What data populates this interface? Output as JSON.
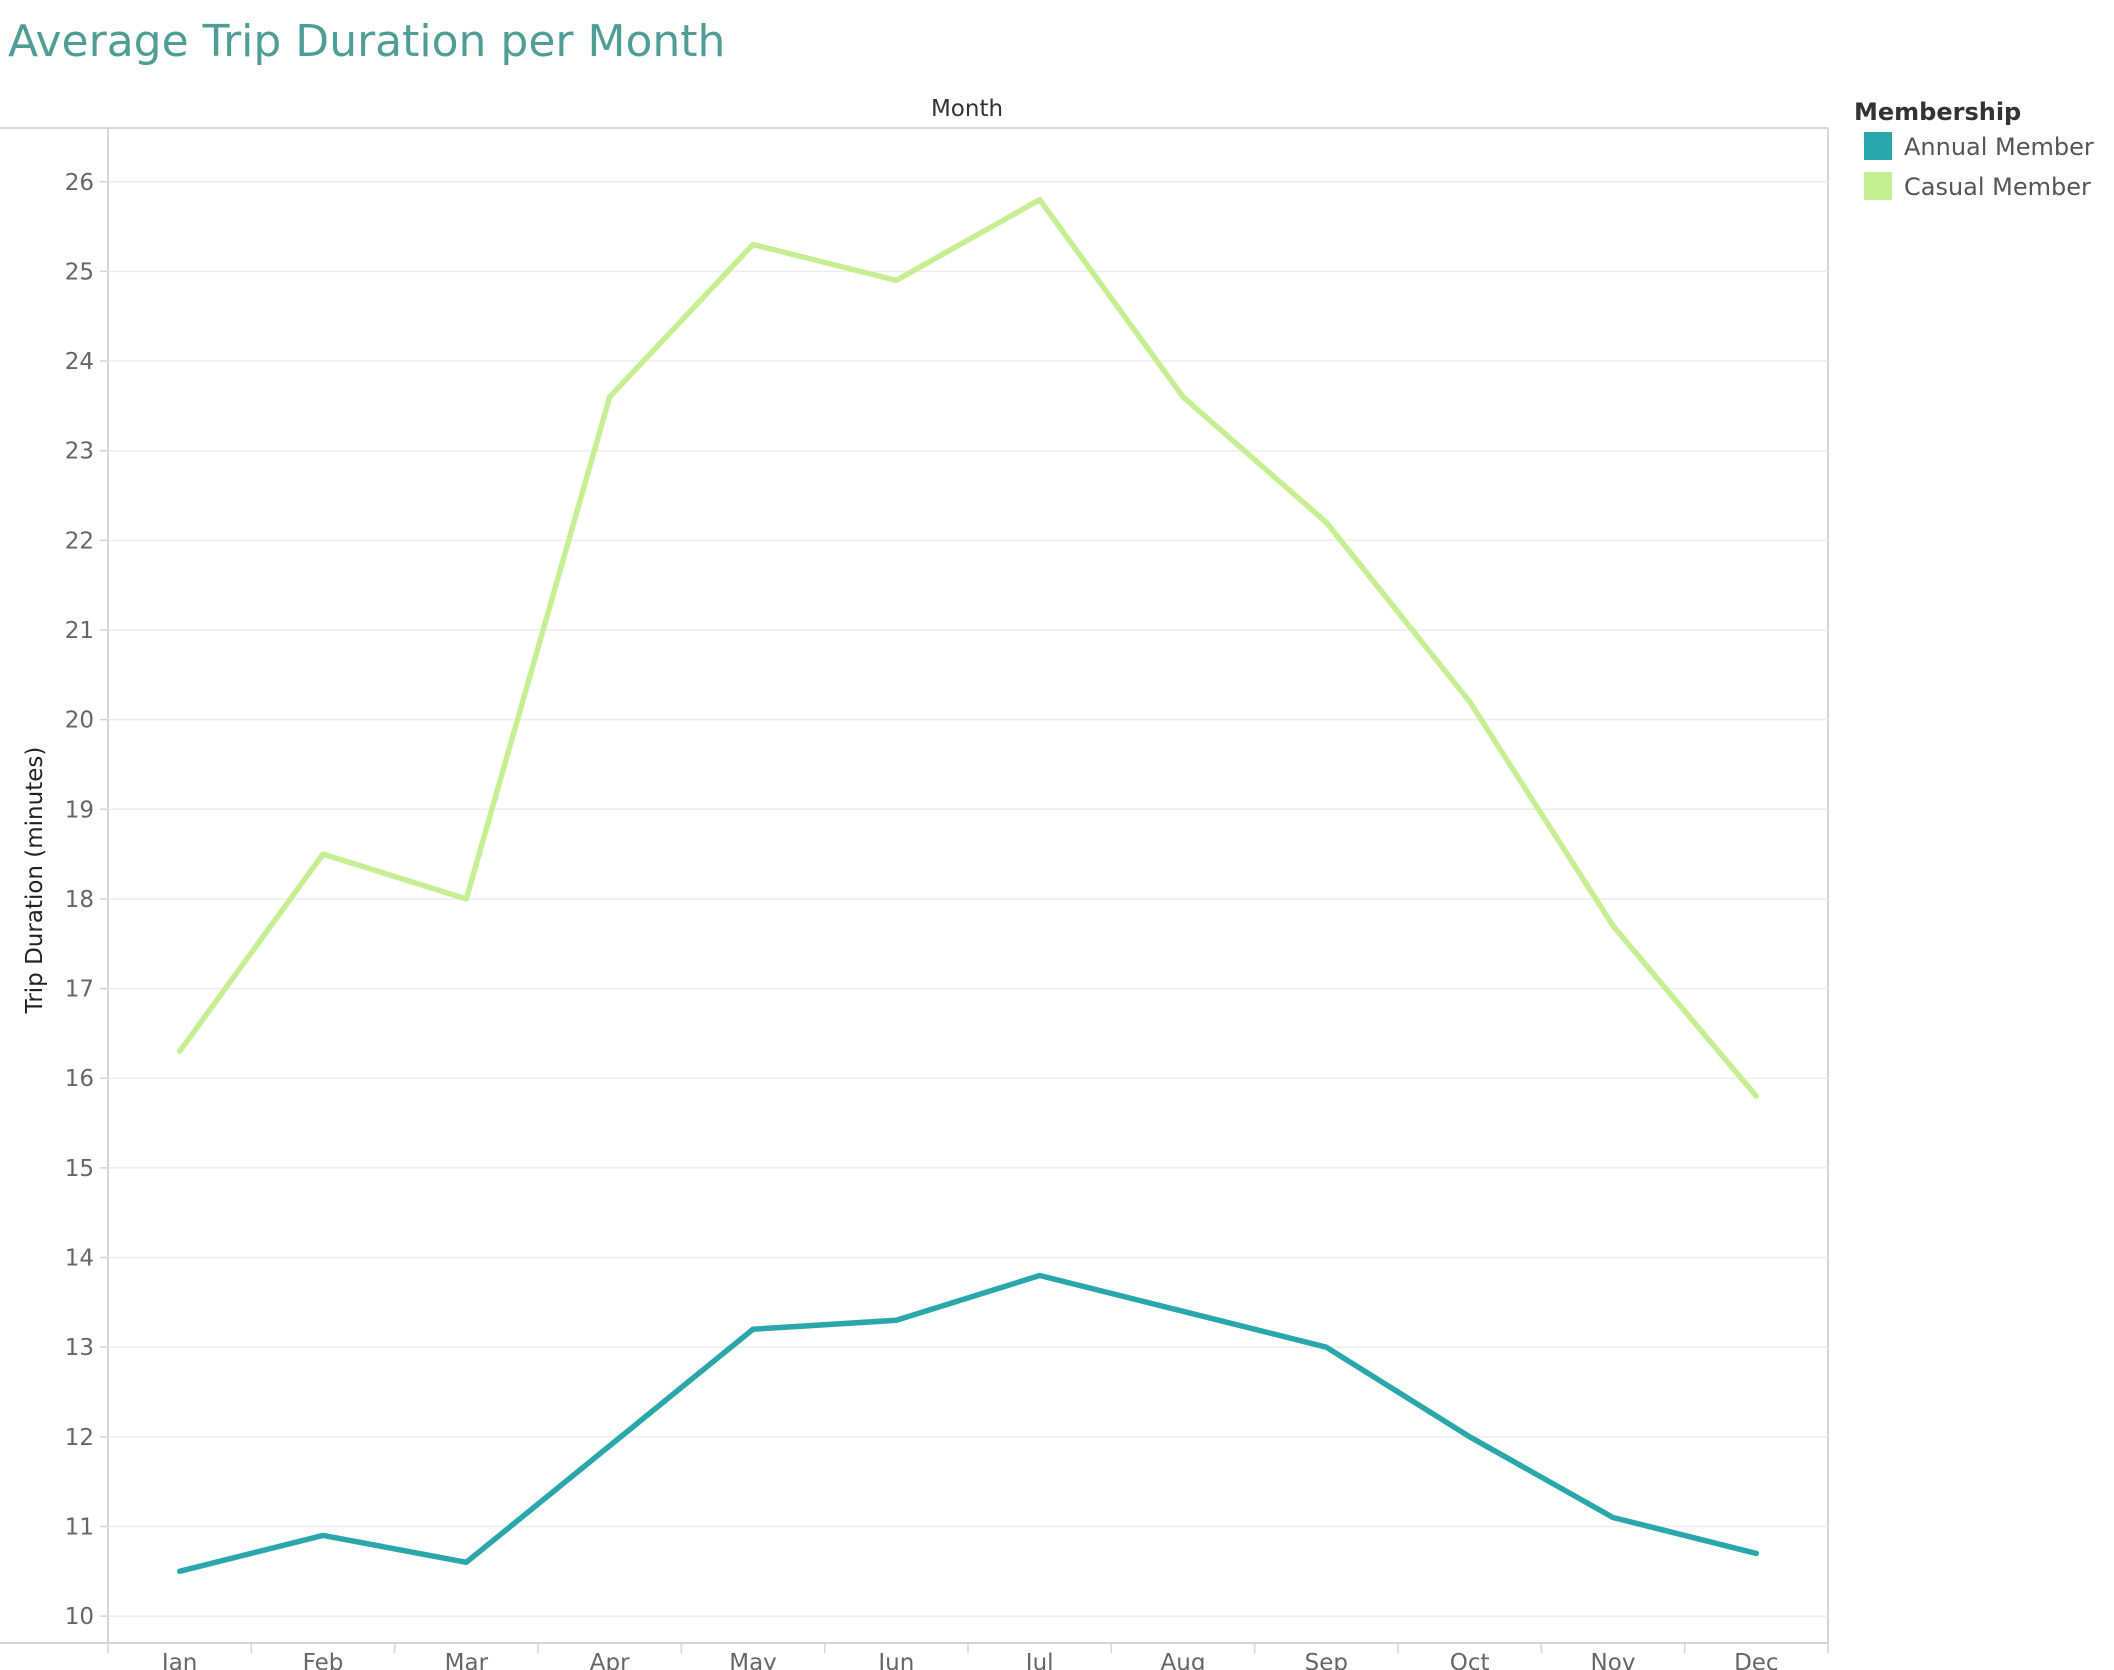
{
  "chart_data": {
    "type": "line",
    "title": "Average Trip Duration per Month",
    "column_header": "Month",
    "xlabel": "",
    "ylabel": "Trip Duration (minutes)",
    "ylim": [
      9.7,
      26.6
    ],
    "yticks": [
      10,
      11,
      12,
      13,
      14,
      15,
      16,
      17,
      18,
      19,
      20,
      21,
      22,
      23,
      24,
      25,
      26
    ],
    "categories": [
      "Jan",
      "Feb",
      "Mar",
      "Apr",
      "May",
      "Jun",
      "Jul",
      "Aug",
      "Sep",
      "Oct",
      "Nov",
      "Dec"
    ],
    "grid": true,
    "legend": {
      "title": "Membership",
      "position": "top-right"
    },
    "series": [
      {
        "name": "Annual Member",
        "color": "#2aa7ab",
        "values": [
          10.5,
          10.9,
          10.6,
          11.9,
          13.2,
          13.3,
          13.8,
          13.4,
          13.0,
          12.0,
          11.1,
          10.7
        ]
      },
      {
        "name": "Casual Member",
        "color": "#c6ee93",
        "values": [
          16.3,
          18.5,
          18.0,
          23.6,
          25.3,
          24.9,
          25.8,
          23.6,
          22.2,
          20.2,
          17.7,
          15.8
        ]
      }
    ]
  }
}
